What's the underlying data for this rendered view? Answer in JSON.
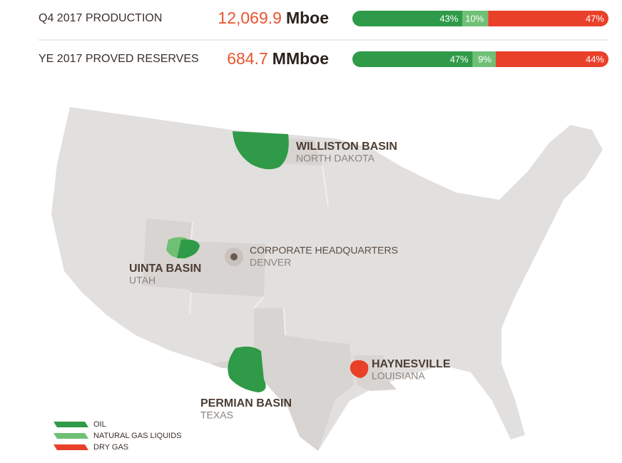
{
  "metrics": [
    {
      "label": "Q4 2017 PRODUCTION",
      "value": "12,069.9",
      "unit": "Mboe",
      "segments": [
        {
          "value": 43,
          "label": "43%"
        },
        {
          "value": 10,
          "label": "10%"
        },
        {
          "value": 47,
          "label": "47%"
        }
      ]
    },
    {
      "label": "YE 2017 PROVED RESERVES",
      "value": "684.7",
      "unit": "MMboe",
      "segments": [
        {
          "value": 47,
          "label": "47%"
        },
        {
          "value": 9,
          "label": "9%"
        },
        {
          "value": 44,
          "label": "44%"
        }
      ]
    }
  ],
  "legend": [
    {
      "label": "OIL",
      "color": "#2f9a48"
    },
    {
      "label": "NATURAL GAS LIQUIDS",
      "color": "#6fc075"
    },
    {
      "label": "DRY GAS",
      "color": "#e9402a"
    }
  ],
  "locations": [
    {
      "name": "WILLISTON BASIN",
      "state": "NORTH DAKOTA"
    },
    {
      "name": "UINTA BASIN",
      "state": "UTAH"
    },
    {
      "name": "CORPORATE HEADQUARTERS",
      "state": "DENVER"
    },
    {
      "name": "PERMIAN BASIN",
      "state": "TEXAS"
    },
    {
      "name": "HAYNESVILLE",
      "state": "LOUISIANA"
    }
  ]
}
